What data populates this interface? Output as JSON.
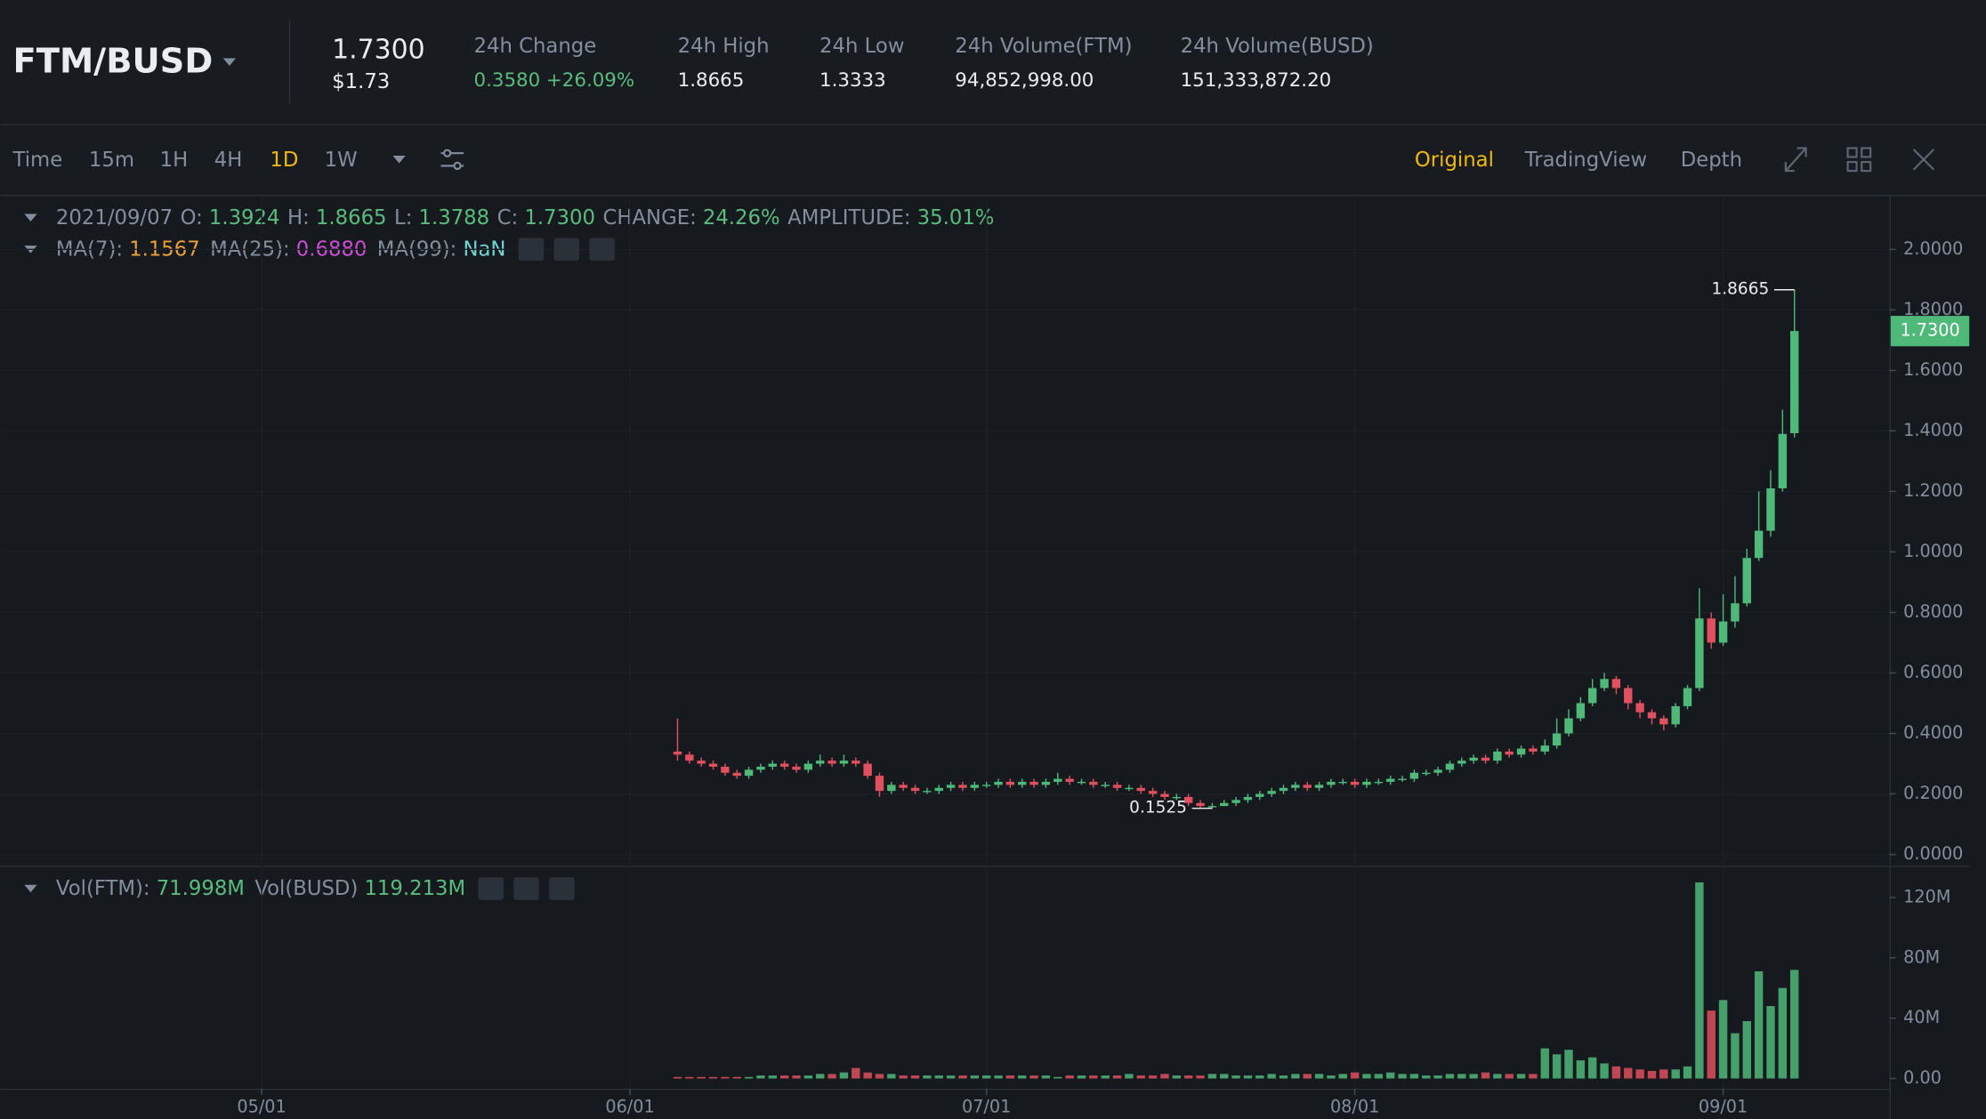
{
  "header": {
    "pair": "FTM/BUSD",
    "price": "1.7300",
    "price_usd": "$1.73",
    "stats": [
      {
        "label": "24h Change",
        "value": "0.3580 +26.09%"
      },
      {
        "label": "24h High",
        "value": "1.8665"
      },
      {
        "label": "24h Low",
        "value": "1.3333"
      },
      {
        "label": "24h Volume(FTM)",
        "value": "94,852,998.00"
      },
      {
        "label": "24h Volume(BUSD)",
        "value": "151,333,872.20"
      }
    ]
  },
  "toolbar": {
    "intervals": [
      "Time",
      "15m",
      "1H",
      "4H",
      "1D",
      "1W"
    ],
    "active_interval": "1D",
    "views": [
      "Original",
      "TradingView",
      "Depth"
    ],
    "active_view": "Original"
  },
  "legend": {
    "date": "2021/09/07",
    "ohlc": [
      {
        "label": "O:",
        "value": "1.3924"
      },
      {
        "label": "H:",
        "value": "1.8665"
      },
      {
        "label": "L:",
        "value": "1.3788"
      },
      {
        "label": "C:",
        "value": "1.7300"
      },
      {
        "label": "CHANGE:",
        "value": "24.26%"
      },
      {
        "label": "AMPLITUDE:",
        "value": "35.01%"
      }
    ],
    "ma": [
      {
        "label": "MA(7):",
        "value": "1.1567",
        "color": "#e8a03c"
      },
      {
        "label": "MA(25):",
        "value": "0.6880",
        "color": "#c94fd8"
      },
      {
        "label": "MA(99):",
        "value": "NaN",
        "color": "#6fd5d5"
      }
    ],
    "vol": [
      {
        "label": "Vol(FTM):",
        "value": "71.998M"
      },
      {
        "label": "Vol(BUSD)",
        "value": "119.213M"
      }
    ]
  },
  "chart_data": [
    {
      "type": "candlestick",
      "up_color": "#4fb97a",
      "down_color": "#e0505f",
      "x": [
        "2021-06-05",
        "2021-06-06",
        "2021-06-07",
        "2021-06-08",
        "2021-06-09",
        "2021-06-10",
        "2021-06-11",
        "2021-06-12",
        "2021-06-13",
        "2021-06-14",
        "2021-06-15",
        "2021-06-16",
        "2021-06-17",
        "2021-06-18",
        "2021-06-19",
        "2021-06-20",
        "2021-06-21",
        "2021-06-22",
        "2021-06-23",
        "2021-06-24",
        "2021-06-25",
        "2021-06-26",
        "2021-06-27",
        "2021-06-28",
        "2021-06-29",
        "2021-06-30",
        "2021-07-01",
        "2021-07-02",
        "2021-07-03",
        "2021-07-04",
        "2021-07-05",
        "2021-07-06",
        "2021-07-07",
        "2021-07-08",
        "2021-07-09",
        "2021-07-10",
        "2021-07-11",
        "2021-07-12",
        "2021-07-13",
        "2021-07-14",
        "2021-07-15",
        "2021-07-16",
        "2021-07-17",
        "2021-07-18",
        "2021-07-19",
        "2021-07-20",
        "2021-07-21",
        "2021-07-22",
        "2021-07-23",
        "2021-07-24",
        "2021-07-25",
        "2021-07-26",
        "2021-07-27",
        "2021-07-28",
        "2021-07-29",
        "2021-07-30",
        "2021-07-31",
        "2021-08-01",
        "2021-08-02",
        "2021-08-03",
        "2021-08-04",
        "2021-08-05",
        "2021-08-06",
        "2021-08-07",
        "2021-08-08",
        "2021-08-09",
        "2021-08-10",
        "2021-08-11",
        "2021-08-12",
        "2021-08-13",
        "2021-08-14",
        "2021-08-15",
        "2021-08-16",
        "2021-08-17",
        "2021-08-18",
        "2021-08-19",
        "2021-08-20",
        "2021-08-21",
        "2021-08-22",
        "2021-08-23",
        "2021-08-24",
        "2021-08-25",
        "2021-08-26",
        "2021-08-27",
        "2021-08-28",
        "2021-08-29",
        "2021-08-30",
        "2021-08-31",
        "2021-09-01",
        "2021-09-02",
        "2021-09-03",
        "2021-09-04",
        "2021-09-05",
        "2021-09-06",
        "2021-09-07"
      ],
      "open": [
        0.34,
        0.33,
        0.31,
        0.3,
        0.29,
        0.27,
        0.26,
        0.28,
        0.29,
        0.3,
        0.29,
        0.28,
        0.3,
        0.31,
        0.3,
        0.31,
        0.3,
        0.26,
        0.21,
        0.23,
        0.22,
        0.21,
        0.21,
        0.22,
        0.23,
        0.22,
        0.23,
        0.23,
        0.24,
        0.23,
        0.24,
        0.23,
        0.24,
        0.25,
        0.24,
        0.24,
        0.23,
        0.23,
        0.22,
        0.22,
        0.21,
        0.2,
        0.19,
        0.19,
        0.17,
        0.16,
        0.16,
        0.17,
        0.18,
        0.19,
        0.2,
        0.21,
        0.22,
        0.23,
        0.22,
        0.23,
        0.24,
        0.24,
        0.23,
        0.24,
        0.24,
        0.25,
        0.25,
        0.27,
        0.27,
        0.28,
        0.3,
        0.31,
        0.32,
        0.31,
        0.34,
        0.33,
        0.35,
        0.34,
        0.36,
        0.4,
        0.45,
        0.5,
        0.55,
        0.58,
        0.55,
        0.5,
        0.47,
        0.45,
        0.43,
        0.49,
        0.55,
        0.78,
        0.7,
        0.77,
        0.83,
        0.98,
        1.07,
        1.21,
        1.3924
      ],
      "high": [
        0.45,
        0.34,
        0.32,
        0.31,
        0.3,
        0.28,
        0.29,
        0.3,
        0.31,
        0.31,
        0.3,
        0.31,
        0.33,
        0.32,
        0.33,
        0.32,
        0.31,
        0.27,
        0.24,
        0.24,
        0.23,
        0.22,
        0.23,
        0.24,
        0.24,
        0.24,
        0.24,
        0.25,
        0.25,
        0.25,
        0.25,
        0.25,
        0.27,
        0.26,
        0.25,
        0.25,
        0.24,
        0.24,
        0.23,
        0.23,
        0.22,
        0.21,
        0.2,
        0.2,
        0.18,
        0.17,
        0.18,
        0.19,
        0.2,
        0.21,
        0.22,
        0.23,
        0.24,
        0.24,
        0.24,
        0.25,
        0.25,
        0.25,
        0.25,
        0.25,
        0.26,
        0.26,
        0.28,
        0.28,
        0.29,
        0.31,
        0.32,
        0.33,
        0.33,
        0.35,
        0.35,
        0.36,
        0.36,
        0.38,
        0.45,
        0.48,
        0.52,
        0.58,
        0.6,
        0.59,
        0.56,
        0.51,
        0.48,
        0.46,
        0.5,
        0.56,
        0.88,
        0.8,
        0.86,
        0.92,
        1.01,
        1.2,
        1.27,
        1.47,
        1.8665
      ],
      "low": [
        0.31,
        0.3,
        0.29,
        0.28,
        0.26,
        0.25,
        0.25,
        0.27,
        0.28,
        0.28,
        0.27,
        0.27,
        0.29,
        0.29,
        0.29,
        0.29,
        0.25,
        0.19,
        0.2,
        0.21,
        0.2,
        0.2,
        0.2,
        0.21,
        0.21,
        0.21,
        0.22,
        0.22,
        0.22,
        0.22,
        0.22,
        0.22,
        0.23,
        0.23,
        0.23,
        0.22,
        0.22,
        0.21,
        0.21,
        0.2,
        0.19,
        0.18,
        0.18,
        0.16,
        0.155,
        0.1525,
        0.16,
        0.16,
        0.17,
        0.18,
        0.19,
        0.2,
        0.21,
        0.21,
        0.21,
        0.22,
        0.23,
        0.22,
        0.22,
        0.23,
        0.23,
        0.24,
        0.24,
        0.26,
        0.26,
        0.27,
        0.29,
        0.3,
        0.3,
        0.3,
        0.32,
        0.32,
        0.33,
        0.33,
        0.35,
        0.39,
        0.44,
        0.49,
        0.54,
        0.53,
        0.48,
        0.45,
        0.43,
        0.41,
        0.42,
        0.48,
        0.54,
        0.68,
        0.69,
        0.75,
        0.82,
        0.97,
        1.05,
        1.2,
        1.3788
      ],
      "close": [
        0.33,
        0.31,
        0.3,
        0.29,
        0.27,
        0.26,
        0.28,
        0.29,
        0.3,
        0.29,
        0.28,
        0.3,
        0.31,
        0.3,
        0.31,
        0.3,
        0.26,
        0.21,
        0.23,
        0.22,
        0.21,
        0.21,
        0.22,
        0.23,
        0.22,
        0.23,
        0.23,
        0.24,
        0.23,
        0.24,
        0.23,
        0.24,
        0.25,
        0.24,
        0.24,
        0.23,
        0.23,
        0.22,
        0.22,
        0.21,
        0.2,
        0.19,
        0.19,
        0.17,
        0.16,
        0.16,
        0.17,
        0.18,
        0.19,
        0.2,
        0.21,
        0.22,
        0.23,
        0.22,
        0.23,
        0.24,
        0.24,
        0.23,
        0.24,
        0.24,
        0.25,
        0.25,
        0.27,
        0.27,
        0.28,
        0.3,
        0.31,
        0.32,
        0.31,
        0.34,
        0.33,
        0.35,
        0.34,
        0.36,
        0.4,
        0.45,
        0.5,
        0.55,
        0.58,
        0.55,
        0.5,
        0.47,
        0.45,
        0.43,
        0.49,
        0.55,
        0.78,
        0.7,
        0.77,
        0.83,
        0.98,
        1.07,
        1.21,
        1.39,
        1.73
      ],
      "xlim": [
        "2021-04-09",
        "2021-09-15"
      ],
      "xticks": [
        {
          "value": "2021-05-01",
          "label": "05/01"
        },
        {
          "value": "2021-06-01",
          "label": "06/01"
        },
        {
          "value": "2021-07-01",
          "label": "07/01"
        },
        {
          "value": "2021-08-01",
          "label": "08/01"
        },
        {
          "value": "2021-09-01",
          "label": "09/01"
        }
      ],
      "ylim": [
        -0.0335,
        2.1757
      ],
      "yticks": [
        {
          "value": 0,
          "label": "0.0000"
        },
        {
          "value": 0.2,
          "label": "0.2000"
        },
        {
          "value": 0.4,
          "label": "0.4000"
        },
        {
          "value": 0.6,
          "label": "0.6000"
        },
        {
          "value": 0.8,
          "label": "0.8000"
        },
        {
          "value": 1,
          "label": "1.0000"
        },
        {
          "value": 1.2,
          "label": "1.2000"
        },
        {
          "value": 1.4,
          "label": "1.4000"
        },
        {
          "value": 1.6,
          "label": "1.6000"
        },
        {
          "value": 1.8,
          "label": "1.8000"
        },
        {
          "value": 2,
          "label": "2.0000"
        }
      ],
      "grid": true
    },
    {
      "type": "bar",
      "values": [
        1,
        1,
        1,
        1,
        1,
        1,
        1,
        2,
        2,
        2,
        2,
        2,
        3,
        3,
        4,
        7,
        4,
        3,
        3,
        2,
        2,
        2,
        2,
        2,
        2,
        2,
        2,
        2,
        2,
        2,
        2,
        2,
        1,
        2,
        2,
        2,
        2,
        2,
        3,
        2,
        2,
        3,
        2,
        2,
        2,
        3,
        3,
        2,
        2,
        2,
        3,
        2,
        3,
        3,
        3,
        2,
        3,
        4,
        3,
        3,
        4,
        3,
        3,
        2,
        2,
        3,
        3,
        3,
        4,
        3,
        3,
        3,
        3,
        20,
        16,
        19,
        12,
        14,
        10,
        8,
        7,
        6,
        5,
        6,
        6,
        8,
        130,
        45,
        52,
        30,
        38,
        71,
        48,
        60,
        71.998
      ],
      "ylim": [
        -6.71,
        137.6
      ],
      "yticks": [
        {
          "value": 0,
          "label": "0.00"
        },
        {
          "value": 40,
          "label": "40M"
        },
        {
          "value": 80,
          "label": "80M"
        },
        {
          "value": 120,
          "label": "120M"
        }
      ]
    }
  ]
}
